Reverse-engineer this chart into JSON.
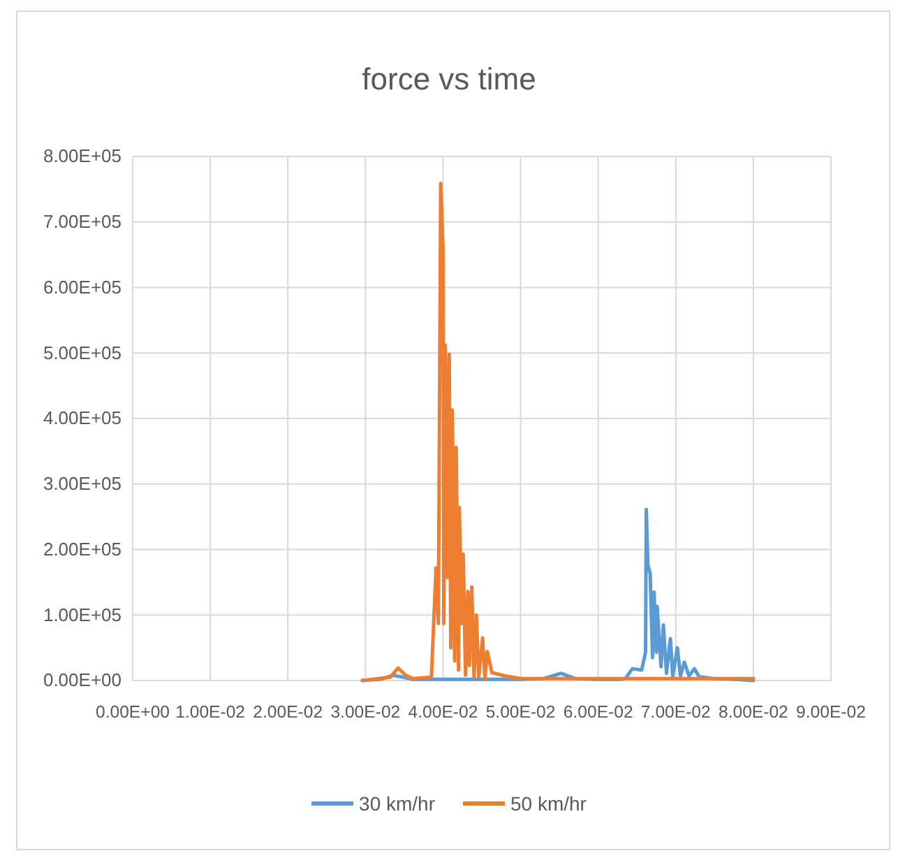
{
  "chart_data": {
    "type": "line",
    "title": "force vs time",
    "xlim": [
      0,
      0.09
    ],
    "xticks": [
      {
        "value": 0,
        "label": "0.00E+00"
      },
      {
        "value": 0.01,
        "label": "1.00E-02"
      },
      {
        "value": 0.02,
        "label": "2.00E-02"
      },
      {
        "value": 0.03,
        "label": "3.00E-02"
      },
      {
        "value": 0.04,
        "label": "4.00E-02"
      },
      {
        "value": 0.05,
        "label": "5.00E-02"
      },
      {
        "value": 0.06,
        "label": "6.00E-02"
      },
      {
        "value": 0.07,
        "label": "7.00E-02"
      },
      {
        "value": 0.08,
        "label": "8.00E-02"
      },
      {
        "value": 0.09,
        "label": "9.00E-02"
      }
    ],
    "ylim": [
      0,
      800000
    ],
    "yticks": [
      {
        "value": 0,
        "label": "0.00E+00"
      },
      {
        "value": 100000,
        "label": "1.00E+05"
      },
      {
        "value": 200000,
        "label": "2.00E+05"
      },
      {
        "value": 300000,
        "label": "3.00E+05"
      },
      {
        "value": 400000,
        "label": "4.00E+05"
      },
      {
        "value": 500000,
        "label": "5.00E+05"
      },
      {
        "value": 600000,
        "label": "6.00E+05"
      },
      {
        "value": 700000,
        "label": "7.00E+05"
      },
      {
        "value": 800000,
        "label": "8.00E+05"
      }
    ],
    "grid": true,
    "legend": "bottom",
    "marker": "none",
    "line_style": "solid",
    "series": [
      {
        "name": "30 km/hr",
        "color": "#5b9bd5",
        "x": [
          0.0296,
          0.032,
          0.0335,
          0.0345,
          0.036,
          0.04,
          0.045,
          0.05,
          0.053,
          0.0552,
          0.057,
          0.06,
          0.063,
          0.0635,
          0.0644,
          0.0656,
          0.0661,
          0.0662,
          0.0664,
          0.0667,
          0.067,
          0.0672,
          0.0675,
          0.0676,
          0.0681,
          0.0684,
          0.0688,
          0.0693,
          0.0696,
          0.0702,
          0.0706,
          0.0711,
          0.0717,
          0.0724,
          0.073,
          0.0748,
          0.0772,
          0.08
        ],
        "values": [
          0,
          2000,
          8000,
          6000,
          2000,
          2000,
          2000,
          2000,
          3000,
          11000,
          3000,
          2000,
          2000,
          3000,
          18000,
          16000,
          43000,
          261000,
          177000,
          163000,
          35000,
          135000,
          43000,
          113000,
          21000,
          85000,
          11000,
          64000,
          7000,
          50000,
          7000,
          28000,
          7000,
          18000,
          6000,
          3000,
          2000,
          0
        ]
      },
      {
        "name": "50 km/hr",
        "color": "#ed7d31",
        "x": [
          0.0296,
          0.0332,
          0.0342,
          0.0352,
          0.0361,
          0.0385,
          0.0391,
          0.0394,
          0.0397,
          0.04,
          0.0401,
          0.0403,
          0.0406,
          0.0408,
          0.041,
          0.0412,
          0.0415,
          0.0417,
          0.042,
          0.0421,
          0.0424,
          0.0426,
          0.0429,
          0.0432,
          0.0434,
          0.0437,
          0.044,
          0.0443,
          0.0446,
          0.0451,
          0.0454,
          0.0457,
          0.0463,
          0.048,
          0.05,
          0.06,
          0.07,
          0.08
        ],
        "values": [
          0,
          5000,
          19000,
          8000,
          3000,
          5000,
          172000,
          87000,
          759000,
          660000,
          87000,
          512000,
          157000,
          498000,
          50000,
          413000,
          30000,
          356000,
          16000,
          264000,
          87000,
          193000,
          8000,
          136000,
          23000,
          143000,
          5000,
          100000,
          5000,
          65000,
          3000,
          44000,
          12000,
          7000,
          3000,
          3000,
          3000,
          3000
        ]
      }
    ]
  }
}
